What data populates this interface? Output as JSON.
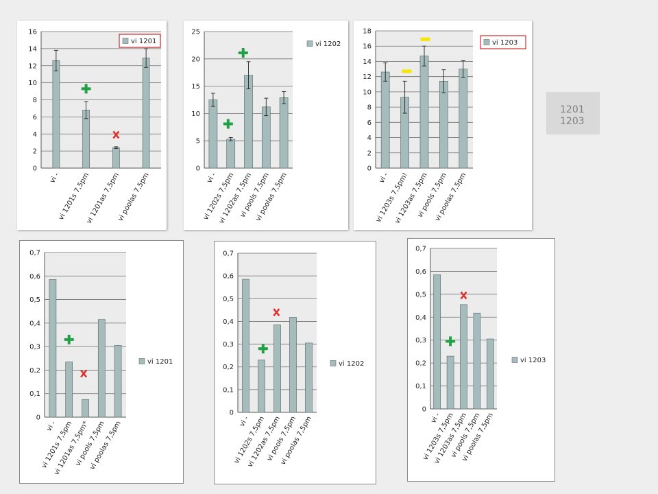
{
  "chart_data": [
    {
      "type": "bar",
      "ylim": [
        0,
        16
      ],
      "ticks": [
        "0",
        "2",
        "4",
        "6",
        "8",
        "10",
        "12",
        "14",
        "16"
      ],
      "categories": [
        "vi -",
        "vi 1201s 7,5pm",
        "vi 1201as 7,5pm",
        "vi poolas 7,5pm"
      ],
      "values": [
        12.6,
        6.8,
        2.4,
        12.9
      ],
      "errors": [
        1.2,
        1.0,
        0.1,
        1.1
      ],
      "legend": "vi 1201",
      "legend_boxed": true,
      "markers": [
        {
          "symbol": "+",
          "color": "#22a045",
          "x": 1.5,
          "y": 9.3
        },
        {
          "symbol": "x",
          "color": "#e03030",
          "x": 2.5,
          "y": 3.9
        }
      ]
    },
    {
      "type": "bar",
      "ylim": [
        0,
        25
      ],
      "ticks": [
        "0",
        "5",
        "10",
        "15",
        "20",
        "25"
      ],
      "categories": [
        "vi -",
        "vi 1202s 7,5pm",
        "vi 1202as 7,5pm",
        "vi pools 7,5pm",
        "vi poolas 7,5pm"
      ],
      "values": [
        12.5,
        5.3,
        17.0,
        11.2,
        12.9
      ],
      "errors": [
        1.2,
        0.3,
        2.5,
        1.6,
        1.1
      ],
      "legend": "vi 1202",
      "legend_boxed": false,
      "markers": [
        {
          "symbol": "+",
          "color": "#22a045",
          "x": 1.35,
          "y": 8.1
        },
        {
          "symbol": "+",
          "color": "#22a045",
          "x": 2.2,
          "y": 21.1
        }
      ]
    },
    {
      "type": "bar",
      "ylim": [
        0,
        18
      ],
      "ticks": [
        "0",
        "2",
        "4",
        "6",
        "8",
        "10",
        "12",
        "14",
        "16",
        "18"
      ],
      "categories": [
        "vi -",
        "vi 1203s 7,5pm!",
        "vi 1203as 7,5pm",
        "vi pools 7,5pm",
        "vi poolas 7,5pm"
      ],
      "values": [
        12.6,
        9.3,
        14.7,
        11.4,
        13.0
      ],
      "errors": [
        1.2,
        2.1,
        1.3,
        1.5,
        1.1
      ],
      "legend": "vi 1203",
      "legend_boxed": true,
      "markers": [
        {
          "symbol": "-",
          "color": "#f4e600",
          "x": 1.6,
          "y": 12.7
        },
        {
          "symbol": "-",
          "color": "#f4e600",
          "x": 2.55,
          "y": 16.9
        }
      ]
    },
    {
      "type": "bar",
      "ylim": [
        0,
        0.7
      ],
      "ticks": [
        "0",
        "0,1",
        "0,2",
        "0,3",
        "0,4",
        "0,5",
        "0,6",
        "0,7"
      ],
      "categories": [
        "vi -",
        "vi 1201s 7,5pm",
        "vi 1201as 7,5pm*",
        "vi pools 7,5pm",
        "vi poolas 7,5pm"
      ],
      "values": [
        0.585,
        0.235,
        0.075,
        0.415,
        0.305
      ],
      "legend": "vi 1201",
      "legend_boxed": false,
      "markers": [
        {
          "symbol": "+",
          "color": "#22a045",
          "x": 1.5,
          "y": 0.33
        },
        {
          "symbol": "x",
          "color": "#e03030",
          "x": 2.4,
          "y": 0.185
        }
      ]
    },
    {
      "type": "bar",
      "ylim": [
        0,
        0.7
      ],
      "ticks": [
        "0",
        "0,1",
        "0,2",
        "0,3",
        "0,4",
        "0,5",
        "0,6",
        "0,7"
      ],
      "categories": [
        "vi -",
        "vi 1202s 7,5pm",
        "vi 1202as 7,5pm",
        "vi pools 7,5pm",
        "vi poolas 7,5pm"
      ],
      "values": [
        0.585,
        0.23,
        0.385,
        0.418,
        0.305
      ],
      "legend": "vi 1202",
      "legend_boxed": false,
      "markers": [
        {
          "symbol": "+",
          "color": "#22a045",
          "x": 1.6,
          "y": 0.28
        },
        {
          "symbol": "x",
          "color": "#e03030",
          "x": 2.45,
          "y": 0.44
        }
      ]
    },
    {
      "type": "bar",
      "ylim": [
        0,
        0.7
      ],
      "ticks": [
        "0",
        "0,1",
        "0,2",
        "0,3",
        "0,4",
        "0,5",
        "0,6",
        "0,7"
      ],
      "categories": [
        "vi -",
        "vi 1203s 7,5pm",
        "vi 1203as 7,5pm",
        "vi pools 7,5pm",
        "vi poolas 7,5pm"
      ],
      "values": [
        0.585,
        0.23,
        0.455,
        0.418,
        0.305
      ],
      "legend": "vi 1203",
      "legend_boxed": false,
      "markers": [
        {
          "symbol": "+",
          "color": "#22a045",
          "x": 1.5,
          "y": 0.295
        },
        {
          "symbol": "x",
          "color": "#e03030",
          "x": 2.5,
          "y": 0.495
        }
      ]
    }
  ],
  "note": {
    "line1": "1201",
    "line2": "1203"
  },
  "colors": {
    "bar": "#a6bcbc",
    "bar_edge": "#5f7070",
    "plot_bg": "#ececec",
    "grid": "#6f6f6f",
    "legend_border": "#c00000"
  }
}
